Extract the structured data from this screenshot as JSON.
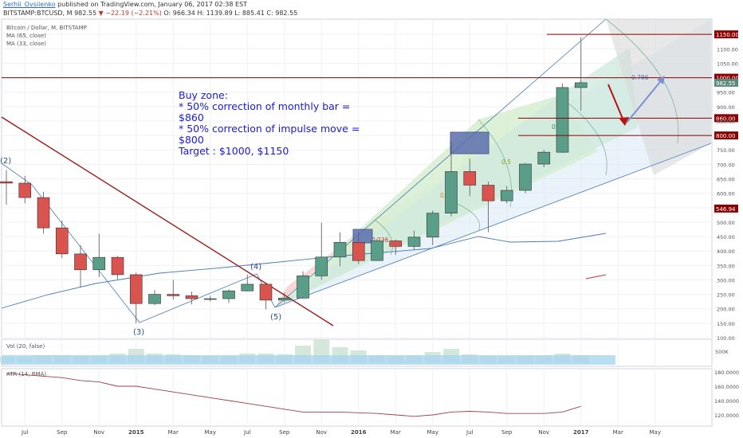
{
  "header": {
    "author": "Serhii_Ovsiienko",
    "published": "published on TradingView.com, January 06, 2017 02:38 EST",
    "symbol": "BITSTAMP:BTCUSD, M",
    "last": "982.55",
    "change": "▼ −22.19 (−2.21%)",
    "ohlc": "O: 966.34 H: 1139.89 L: 885.41 C: 982.55"
  },
  "legend": {
    "title": "Bitcoin / Dollar, M, BITSTAMP",
    "ma1": "MA (65, close)",
    "ma2": "MA (33, close)"
  },
  "annotation": {
    "lines": [
      "Buy zone:",
      "* 50% correction of monthly bar =",
      "$860",
      "* 50% correction of impulse move =",
      "$800",
      "Target : $1000, $1150"
    ]
  },
  "colors": {
    "up": "#5a9e8a",
    "down": "#d9534f",
    "hline": "#8b0000",
    "ma65": "#4a7ab8",
    "ma33": "#4a7ab8",
    "atr": "#a0404a",
    "fan_line": "#4a7ab8"
  },
  "chart_data": [
    {
      "type": "candlestick",
      "title": "Bitcoin / Dollar, M, BITSTAMP",
      "x": [
        "2014-06",
        "2014-07",
        "2014-08",
        "2014-09",
        "2014-10",
        "2014-11",
        "2014-12",
        "2015-01",
        "2015-02",
        "2015-03",
        "2015-04",
        "2015-05",
        "2015-06",
        "2015-07",
        "2015-08",
        "2015-09",
        "2015-10",
        "2015-11",
        "2015-12",
        "2016-01",
        "2016-02",
        "2016-03",
        "2016-04",
        "2016-05",
        "2016-06",
        "2016-07",
        "2016-08",
        "2016-09",
        "2016-10",
        "2016-11",
        "2016-12",
        "2017-01"
      ],
      "open": [
        640,
        635,
        585,
        480,
        390,
        335,
        378,
        318,
        218,
        250,
        245,
        235,
        235,
        262,
        285,
        230,
        237,
        314,
        379,
        430,
        367,
        435,
        416,
        448,
        531,
        675,
        628,
        574,
        610,
        701,
        742,
        966
      ],
      "high": [
        680,
        660,
        605,
        505,
        420,
        460,
        383,
        325,
        265,
        300,
        260,
        245,
        268,
        318,
        290,
        256,
        330,
        498,
        465,
        465,
        443,
        440,
        470,
        540,
        780,
        720,
        640,
        625,
        705,
        750,
        981,
        1139.89
      ],
      "low": [
        560,
        565,
        460,
        375,
        275,
        310,
        302,
        150,
        212,
        232,
        215,
        225,
        220,
        260,
        198,
        222,
        235,
        300,
        347,
        355,
        366,
        386,
        405,
        420,
        520,
        590,
        465,
        565,
        600,
        690,
        740,
        885.41
      ],
      "close": [
        635,
        585,
        480,
        390,
        335,
        378,
        318,
        218,
        250,
        245,
        235,
        235,
        262,
        285,
        230,
        237,
        314,
        379,
        430,
        367,
        435,
        416,
        448,
        531,
        675,
        628,
        574,
        610,
        701,
        742,
        966,
        982.55
      ],
      "price_ticks": [
        100,
        150,
        200,
        250,
        300,
        350,
        400,
        450,
        500,
        550,
        600,
        650,
        700,
        750,
        800,
        850,
        900,
        950,
        1000,
        1050,
        1100,
        1150
      ],
      "ylim": [
        100,
        1170
      ],
      "x_ticks": [
        "Jul",
        "Sep",
        "Nov",
        "2015",
        "Mar",
        "May",
        "Jul",
        "Sep",
        "Nov",
        "2016",
        "Mar",
        "May",
        "Jul",
        "Sep",
        "Nov",
        "2017",
        "Mar",
        "May"
      ],
      "horizontal_levels": [
        {
          "value": 1150,
          "label": "1150.00"
        },
        {
          "value": 1000,
          "label": "1000.00"
        },
        {
          "value": 860,
          "label": "860.00"
        },
        {
          "value": 800,
          "label": "800.00"
        }
      ],
      "price_badges": [
        {
          "value": 982.55,
          "label": "982.55"
        },
        {
          "value": 546.94,
          "label": "546.94"
        }
      ],
      "wave_labels": [
        "(2)",
        "(3)",
        "(4)",
        "(5)"
      ],
      "fib_labels": [
        "0.236",
        "0.382",
        "0.5",
        "0.618",
        "0.786"
      ],
      "series": [
        {
          "name": "MA (65, close)"
        },
        {
          "name": "MA (33, close)"
        }
      ]
    },
    {
      "type": "bar",
      "title": "Vol (20, false)",
      "y_ticks": [
        "500K"
      ]
    },
    {
      "type": "line",
      "title": "ATR (14, RMA)",
      "y_ticks": [
        "180.0000",
        "160.0000",
        "140.0000",
        "120.0000"
      ],
      "ylim": [
        110,
        185
      ],
      "values": [
        178,
        176,
        174,
        172,
        168,
        166,
        160,
        160,
        156,
        152,
        148,
        144,
        140,
        136,
        132,
        128,
        124,
        124,
        124,
        123,
        122,
        120,
        118,
        120,
        124,
        125,
        124,
        122,
        122,
        122,
        124,
        132
      ]
    }
  ]
}
